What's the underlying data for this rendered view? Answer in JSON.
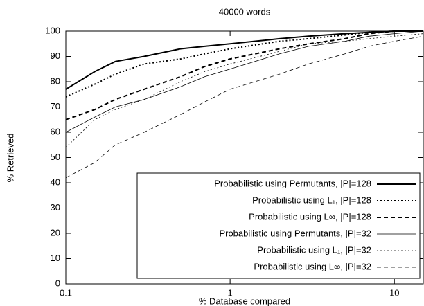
{
  "chart_data": {
    "type": "line",
    "title": "40000 words",
    "x_label": "% Database compared",
    "y_label": "% Retrieved",
    "x_scale": "log",
    "x": [
      0.1,
      0.15,
      0.2,
      0.3,
      0.5,
      0.7,
      1,
      2,
      3,
      5,
      7,
      10,
      15
    ],
    "xlim": [
      0.1,
      15
    ],
    "xticks": [
      0.1,
      1,
      10
    ],
    "ylim": [
      0,
      100
    ],
    "yticks": [
      0,
      10,
      20,
      30,
      40,
      50,
      60,
      70,
      80,
      90,
      100
    ],
    "legend_position": "lower right",
    "series": [
      {
        "name": "Probabilistic using Permutants, |P|=128",
        "color": "#000000",
        "line_style": "solid",
        "line_width": 2,
        "values": [
          77,
          84,
          88,
          90,
          93,
          94,
          95,
          97,
          98,
          99,
          99.5,
          100,
          100
        ]
      },
      {
        "name": "Probabilistic using L₁, |P|=128",
        "color": "#000000",
        "line_style": "dotted",
        "line_width": 2,
        "values": [
          74,
          79,
          83,
          87,
          89,
          91,
          93,
          96,
          97,
          98.5,
          99.5,
          100,
          100
        ]
      },
      {
        "name": "Probabilistic using L∞, |P|=128",
        "color": "#000000",
        "line_style": "dashed",
        "line_width": 2,
        "values": [
          65,
          69,
          73,
          77,
          82,
          86,
          89,
          93,
          95,
          97,
          99,
          100,
          100
        ]
      },
      {
        "name": "Probabilistic using Permutants, |P|=32",
        "color": "#000000",
        "line_style": "solid",
        "line_width": 0.8,
        "values": [
          60,
          66,
          70,
          73,
          78,
          82,
          85,
          91,
          94,
          96,
          98,
          99,
          100
        ]
      },
      {
        "name": "Probabilistic using L₁, |P|=32",
        "color": "#000000",
        "line_style": "dotted",
        "line_width": 0.8,
        "values": [
          54,
          65,
          69,
          73,
          80,
          84,
          87,
          92,
          95,
          96,
          97,
          98,
          99
        ]
      },
      {
        "name": "Probabilistic using L∞, |P|=32",
        "color": "#000000",
        "line_style": "dashed",
        "line_width": 0.8,
        "values": [
          42,
          48,
          55,
          60,
          67,
          72,
          77,
          83,
          87,
          91,
          94,
          96,
          98
        ]
      }
    ]
  }
}
